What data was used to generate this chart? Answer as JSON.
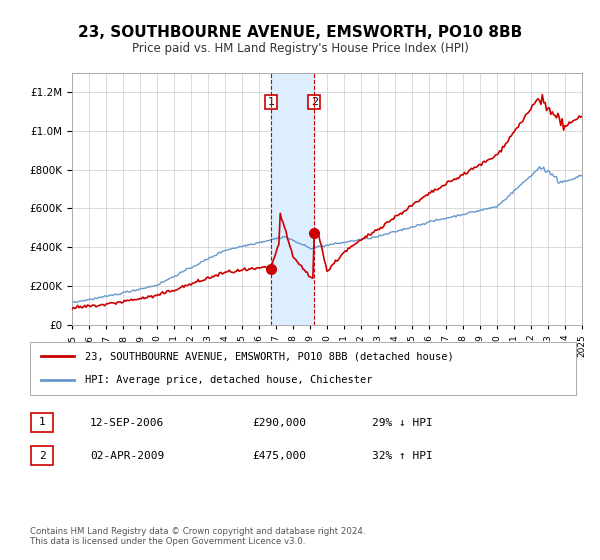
{
  "title": "23, SOUTHBOURNE AVENUE, EMSWORTH, PO10 8BB",
  "subtitle": "Price paid vs. HM Land Registry's House Price Index (HPI)",
  "legend_line1": "23, SOUTHBOURNE AVENUE, EMSWORTH, PO10 8BB (detached house)",
  "legend_line2": "HPI: Average price, detached house, Chichester",
  "sale1_date": "12-SEP-2006",
  "sale1_price": 290000,
  "sale1_hpi": "29% ↓ HPI",
  "sale2_date": "02-APR-2009",
  "sale2_price": 475000,
  "sale2_hpi": "32% ↑ HPI",
  "footer": "Contains HM Land Registry data © Crown copyright and database right 2024.\nThis data is licensed under the Open Government Licence v3.0.",
  "red_color": "#cc0000",
  "blue_color": "#6699cc",
  "shade_color": "#ddeeff",
  "ylim_max": 1300000,
  "year_start": 1995,
  "year_end": 2025
}
